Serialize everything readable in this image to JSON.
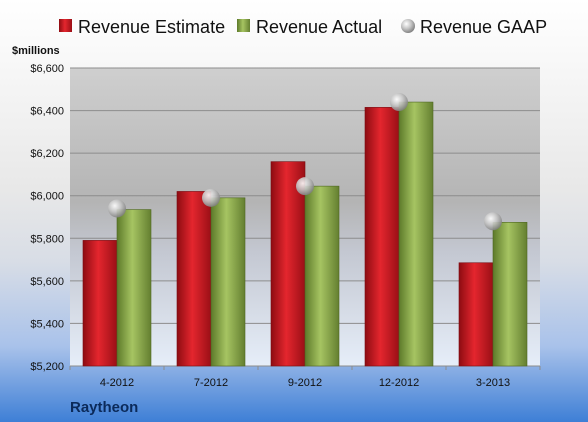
{
  "chart_data": {
    "type": "bar",
    "unit_label": "$millions",
    "company": "Raytheon",
    "categories": [
      "4-2012",
      "7-2012",
      "9-2012",
      "12-2012",
      "3-2013"
    ],
    "series": [
      {
        "name": "Revenue Estimate",
        "kind": "bar",
        "color": "#c8141e",
        "values": [
          5790,
          6020,
          6160,
          6415,
          5685
        ]
      },
      {
        "name": "Revenue Actual",
        "kind": "bar",
        "color": "#8aa84a",
        "values": [
          5935,
          5990,
          6045,
          6440,
          5875
        ]
      },
      {
        "name": "Revenue GAAP",
        "kind": "marker",
        "color": "#a8a8a8",
        "values": [
          5940,
          5990,
          6045,
          6440,
          5880
        ]
      }
    ],
    "ylim": [
      5200,
      6600
    ],
    "yticks": [
      5200,
      5400,
      5600,
      5800,
      6000,
      6200,
      6400,
      6600
    ],
    "ytick_labels": [
      "$5,200",
      "$5,400",
      "$5,600",
      "$5,800",
      "$6,000",
      "$6,200",
      "$6,400",
      "$6,600"
    ],
    "grid": true,
    "legend_position": "top"
  }
}
